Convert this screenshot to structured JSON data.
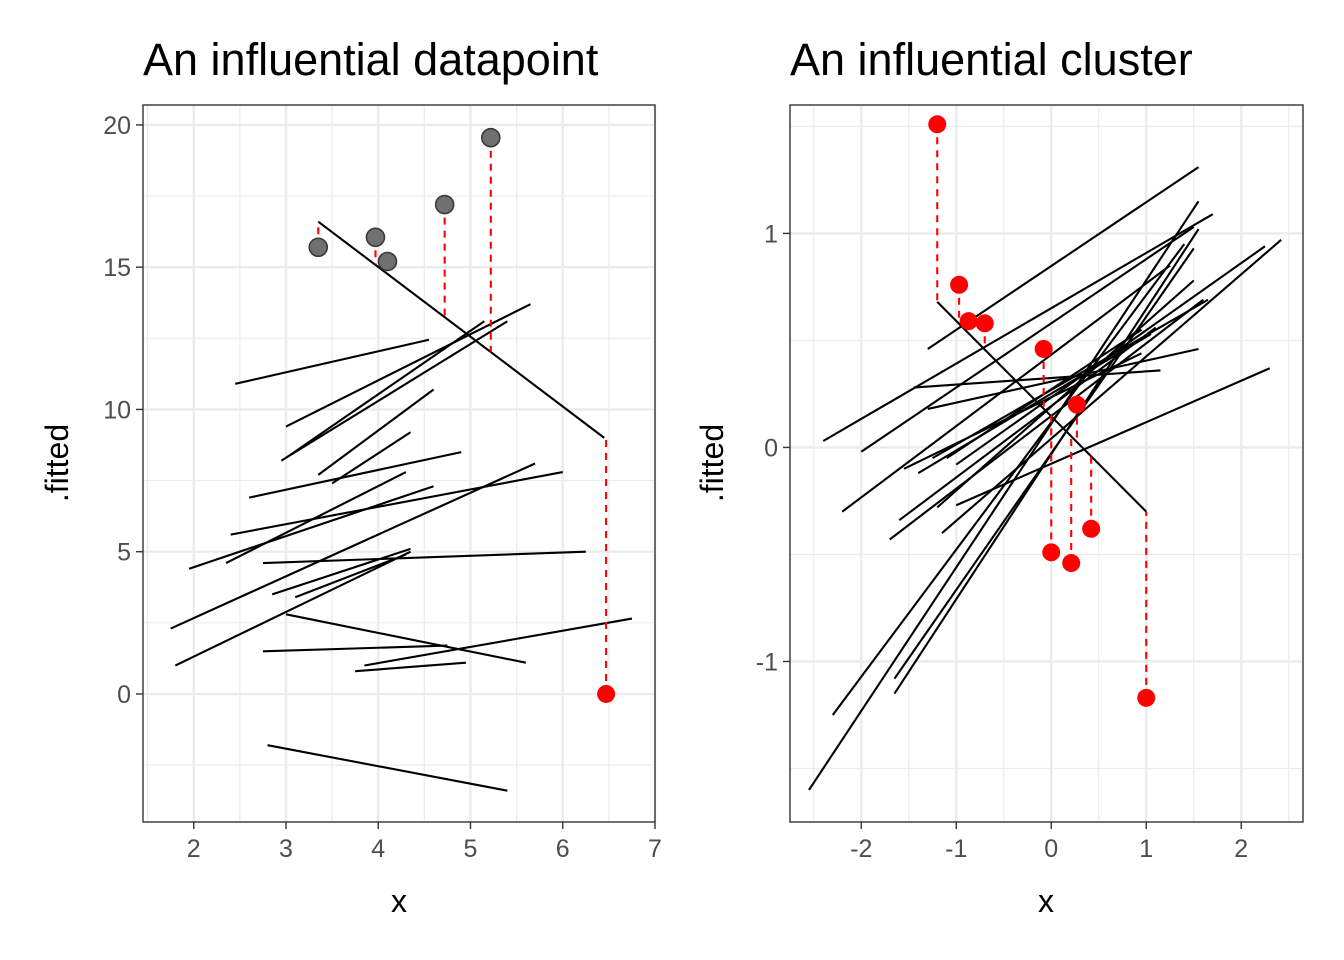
{
  "colors": {
    "highlight": "#ff0000",
    "datapoint_fill": "#707070",
    "datapoint_stroke": "#3a3a3a",
    "fit_line": "#000000",
    "panel_background": "#ffffff",
    "grid": "#ebebeb",
    "tick_label": "#4d4d4d"
  },
  "chart_data": [
    {
      "type": "line",
      "title": "An influential datapoint",
      "xlabel": "x",
      "ylabel": ".fitted",
      "xlim": [
        1.45,
        7.0
      ],
      "ylim": [
        -4.5,
        20.7
      ],
      "xticks": [
        2,
        3,
        4,
        5,
        6,
        7
      ],
      "yticks": [
        0,
        5,
        10,
        15,
        20
      ],
      "xtick_labels": [
        "2",
        "3",
        "4",
        "5",
        "6",
        "7"
      ],
      "ytick_labels": [
        "0",
        "5",
        "10",
        "15",
        "20"
      ],
      "grid": true,
      "fitted_lines": [
        {
          "x": [
            2.45,
            4.55
          ],
          "y": [
            10.9,
            12.45
          ]
        },
        {
          "x": [
            3.0,
            5.65
          ],
          "y": [
            9.4,
            13.7
          ]
        },
        {
          "x": [
            3.0,
            5.15
          ],
          "y": [
            8.3,
            13.1
          ]
        },
        {
          "x": [
            2.95,
            5.4
          ],
          "y": [
            8.2,
            13.1
          ]
        },
        {
          "x": [
            3.35,
            4.6
          ],
          "y": [
            7.7,
            10.7
          ]
        },
        {
          "x": [
            3.5,
            4.35
          ],
          "y": [
            7.4,
            9.2
          ]
        },
        {
          "x": [
            2.6,
            4.9
          ],
          "y": [
            6.9,
            8.5
          ]
        },
        {
          "x": [
            2.4,
            6.0
          ],
          "y": [
            5.6,
            7.8
          ]
        },
        {
          "x": [
            2.35,
            4.3
          ],
          "y": [
            4.6,
            7.8
          ]
        },
        {
          "x": [
            1.95,
            4.6
          ],
          "y": [
            4.4,
            7.3
          ]
        },
        {
          "x": [
            1.75,
            5.7
          ],
          "y": [
            2.3,
            8.1
          ]
        },
        {
          "x": [
            1.8,
            4.35
          ],
          "y": [
            1.0,
            5.0
          ]
        },
        {
          "x": [
            2.75,
            6.25
          ],
          "y": [
            4.6,
            5.0
          ]
        },
        {
          "x": [
            2.85,
            4.35
          ],
          "y": [
            3.5,
            5.1
          ]
        },
        {
          "x": [
            3.1,
            4.3
          ],
          "y": [
            3.4,
            4.9
          ]
        },
        {
          "x": [
            3.0,
            5.6
          ],
          "y": [
            2.8,
            1.1
          ]
        },
        {
          "x": [
            2.75,
            4.75
          ],
          "y": [
            1.5,
            1.7
          ]
        },
        {
          "x": [
            3.85,
            6.75
          ],
          "y": [
            1.0,
            2.65
          ]
        },
        {
          "x": [
            3.75,
            4.95
          ],
          "y": [
            0.8,
            1.1
          ]
        },
        {
          "x": [
            2.8,
            5.4
          ],
          "y": [
            -1.8,
            -3.4
          ]
        },
        {
          "x": [
            3.35,
            6.45
          ],
          "y": [
            16.6,
            9.0
          ]
        }
      ],
      "points": [
        {
          "x": 3.35,
          "y": 15.7,
          "fitted": 16.6,
          "highlight": false
        },
        {
          "x": 3.97,
          "y": 16.05,
          "fitted": 15.1,
          "highlight": false
        },
        {
          "x": 4.1,
          "y": 15.2,
          "fitted": 14.75,
          "highlight": false
        },
        {
          "x": 4.72,
          "y": 17.2,
          "fitted": 13.25,
          "highlight": false
        },
        {
          "x": 5.22,
          "y": 19.55,
          "fitted": 12.0,
          "highlight": false
        },
        {
          "x": 6.47,
          "y": 0.0,
          "fitted": 9.0,
          "highlight": true
        }
      ]
    },
    {
      "type": "line",
      "title": "An influential cluster",
      "xlabel": "x",
      "ylabel": ".fitted",
      "xlim": [
        -2.75,
        2.65
      ],
      "ylim": [
        -1.75,
        1.6
      ],
      "xticks": [
        -2,
        -1,
        0,
        1,
        2
      ],
      "yticks": [
        -1,
        0,
        1
      ],
      "xtick_labels": [
        "-2",
        "-1",
        "0",
        "1",
        "2"
      ],
      "ytick_labels": [
        "-1",
        "0",
        "1"
      ],
      "grid": true,
      "fitted_lines": [
        {
          "x": [
            -2.55,
            1.55
          ],
          "y": [
            -1.6,
            1.15
          ]
        },
        {
          "x": [
            -2.3,
            1.4
          ],
          "y": [
            -1.25,
            0.95
          ]
        },
        {
          "x": [
            -1.65,
            1.55
          ],
          "y": [
            -1.15,
            1.02
          ]
        },
        {
          "x": [
            -1.65,
            1.5
          ],
          "y": [
            -1.08,
            0.93
          ]
        },
        {
          "x": [
            -2.4,
            1.7
          ],
          "y": [
            0.03,
            1.09
          ]
        },
        {
          "x": [
            -1.3,
            1.55
          ],
          "y": [
            0.46,
            1.31
          ]
        },
        {
          "x": [
            -2.0,
            1.5
          ],
          "y": [
            -0.02,
            1.03
          ]
        },
        {
          "x": [
            -2.2,
            1.25
          ],
          "y": [
            -0.3,
            0.85
          ]
        },
        {
          "x": [
            -1.6,
            1.1
          ],
          "y": [
            -0.34,
            0.56
          ]
        },
        {
          "x": [
            -1.7,
            1.6
          ],
          "y": [
            -0.43,
            0.69
          ]
        },
        {
          "x": [
            -1.2,
            1.5
          ],
          "y": [
            -0.28,
            0.78
          ]
        },
        {
          "x": [
            -1.55,
            0.95
          ],
          "y": [
            -0.1,
            0.44
          ]
        },
        {
          "x": [
            -1.4,
            1.05
          ],
          "y": [
            -0.12,
            0.53
          ]
        },
        {
          "x": [
            -1.25,
            1.65
          ],
          "y": [
            -0.05,
            0.69
          ]
        },
        {
          "x": [
            -1.0,
            2.25
          ],
          "y": [
            -0.08,
            0.94
          ]
        },
        {
          "x": [
            -1.15,
            2.42
          ],
          "y": [
            -0.4,
            0.97
          ]
        },
        {
          "x": [
            -1.1,
            0.95
          ],
          "y": [
            -0.05,
            0.55
          ]
        },
        {
          "x": [
            -1.45,
            1.15
          ],
          "y": [
            0.28,
            0.36
          ]
        },
        {
          "x": [
            -1.3,
            1.55
          ],
          "y": [
            0.18,
            0.46
          ]
        },
        {
          "x": [
            -1.0,
            2.3
          ],
          "y": [
            -0.27,
            0.37
          ]
        },
        {
          "x": [
            -1.2,
            1.0
          ],
          "y": [
            0.68,
            -0.3
          ]
        }
      ],
      "points": [
        {
          "x": -1.2,
          "y": 1.51,
          "fitted": 0.68,
          "highlight": true
        },
        {
          "x": -0.97,
          "y": 0.76,
          "fitted": 0.58,
          "highlight": true
        },
        {
          "x": -0.87,
          "y": 0.59,
          "fitted": 0.53,
          "highlight": true
        },
        {
          "x": -0.7,
          "y": 0.58,
          "fitted": 0.46,
          "highlight": true
        },
        {
          "x": -0.08,
          "y": 0.46,
          "fitted": 0.19,
          "highlight": true
        },
        {
          "x": 0.0,
          "y": -0.49,
          "fitted": 0.15,
          "highlight": true
        },
        {
          "x": 0.21,
          "y": -0.54,
          "fitted": 0.06,
          "highlight": true
        },
        {
          "x": 0.27,
          "y": 0.2,
          "fitted": 0.03,
          "highlight": true
        },
        {
          "x": 0.42,
          "y": -0.38,
          "fitted": -0.04,
          "highlight": true
        },
        {
          "x": 1.0,
          "y": -1.17,
          "fitted": -0.3,
          "highlight": true
        }
      ]
    }
  ]
}
